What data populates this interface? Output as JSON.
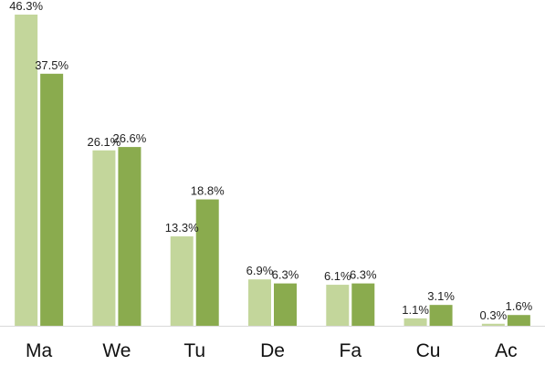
{
  "chart_data": {
    "type": "bar",
    "categories": [
      "Ma",
      "We",
      "Tu",
      "De",
      "Fa",
      "Cu",
      "Ac"
    ],
    "series": [
      {
        "values": [
          46.3,
          26.1,
          13.3,
          6.9,
          6.1,
          1.1,
          0.3
        ],
        "color": "#c3d69b"
      },
      {
        "values": [
          37.5,
          26.6,
          18.8,
          6.3,
          6.3,
          3.1,
          1.6
        ],
        "color": "#8aab4e"
      }
    ],
    "value_suffix": "%",
    "ylim": [
      0,
      46.3
    ],
    "grid": false,
    "legend": "none",
    "axis_color": "#d9d9d9"
  }
}
